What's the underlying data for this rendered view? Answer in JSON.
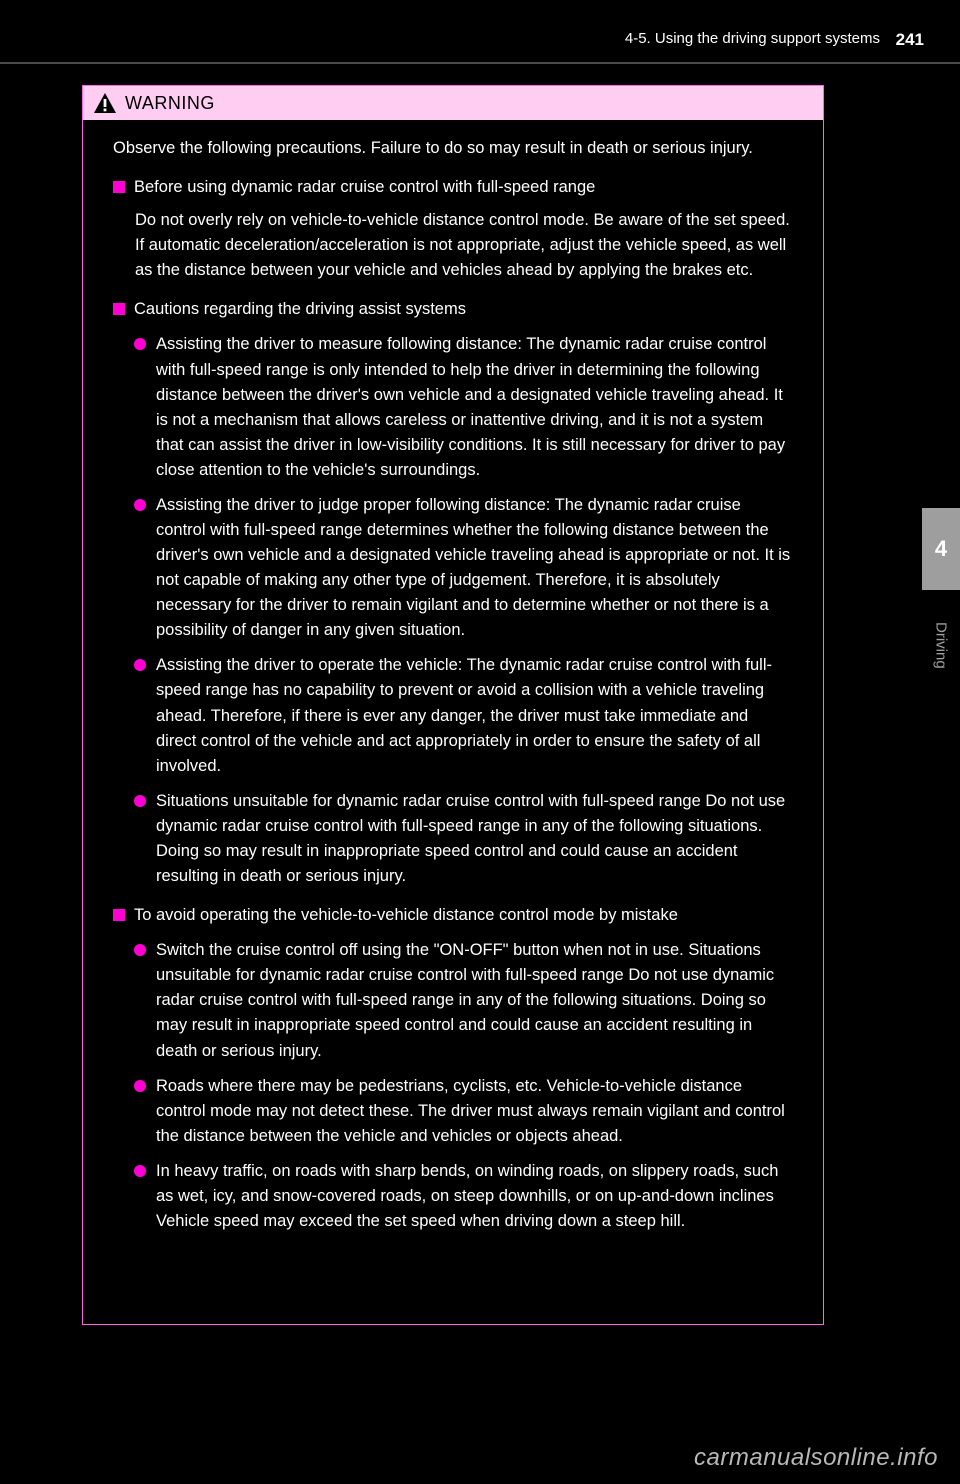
{
  "header": {
    "section_label": "4-5. Using the driving support systems",
    "page_number": "241"
  },
  "side_tab": {
    "number": "4",
    "label": "Driving"
  },
  "warning": {
    "title": "WARNING",
    "intro": "Observe the following precautions. Failure to do so may result in death or serious injury.",
    "sections": [
      {
        "head": "Before using dynamic radar cruise control with full-speed range",
        "body": "Do not overly rely on vehicle-to-vehicle distance control mode. Be aware of the set speed. If automatic deceleration/acceleration is not appropriate, adjust the vehicle speed, as well as the distance between your vehicle and vehicles ahead by applying the brakes etc.",
        "bullets": []
      },
      {
        "head": "Cautions regarding the driving assist systems",
        "body": "",
        "bullets": [
          "Assisting the driver to measure following distance:\nThe dynamic radar cruise control with full-speed range is only intended to help the driver in determining the following distance between the driver's own vehicle and a designated vehicle traveling ahead. It is not a mechanism that allows careless or inattentive driving, and it is not a system that can assist the driver in low-visibility conditions. It is still necessary for driver to pay close attention to the vehicle's surroundings.",
          "Assisting the driver to judge proper following distance:\nThe dynamic radar cruise control with full-speed range determines whether the following distance between the driver's own vehicle and a designated vehicle traveling ahead is appropriate or not. It is not capable of making any other type of judgement. Therefore, it is absolutely necessary for the driver to remain vigilant and to determine whether or not there is a possibility of danger in any given situation.",
          "Assisting the driver to operate the vehicle:\nThe dynamic radar cruise control with full-speed range has no capability to prevent or avoid a collision with a vehicle traveling ahead. Therefore, if there is ever any danger, the driver must take immediate and direct control of the vehicle and act appropriately in order to ensure the safety of all involved.",
          "Situations unsuitable for dynamic radar cruise control with full-speed range\nDo not use dynamic radar cruise control with full-speed range in any of the following situations.\nDoing so may result in inappropriate speed control and could cause an accident resulting in death or serious injury."
        ]
      },
      {
        "head": "To avoid operating the vehicle-to-vehicle distance control mode by mistake",
        "body": "",
        "bullets": [
          "Switch the cruise control off using the \"ON-OFF\" button when not in use.\nSituations unsuitable for dynamic radar cruise control with full-speed range\nDo not use dynamic radar cruise control with full-speed range in any of the following situations.\nDoing so may result in inappropriate speed control and could cause an accident resulting in death or serious injury.",
          "Roads where there may be pedestrians, cyclists, etc.\nVehicle-to-vehicle distance control mode may not detect these. The driver must always remain vigilant and control the distance between the vehicle and vehicles or objects ahead.",
          "In heavy traffic, on roads with sharp bends, on winding roads, on slippery roads, such as wet, icy, and snow-covered roads, on steep downhills, or on up-and-down inclines\nVehicle speed may exceed the set speed when driving down a steep hill."
        ]
      }
    ]
  },
  "watermark": "carmanualsonline.info"
}
